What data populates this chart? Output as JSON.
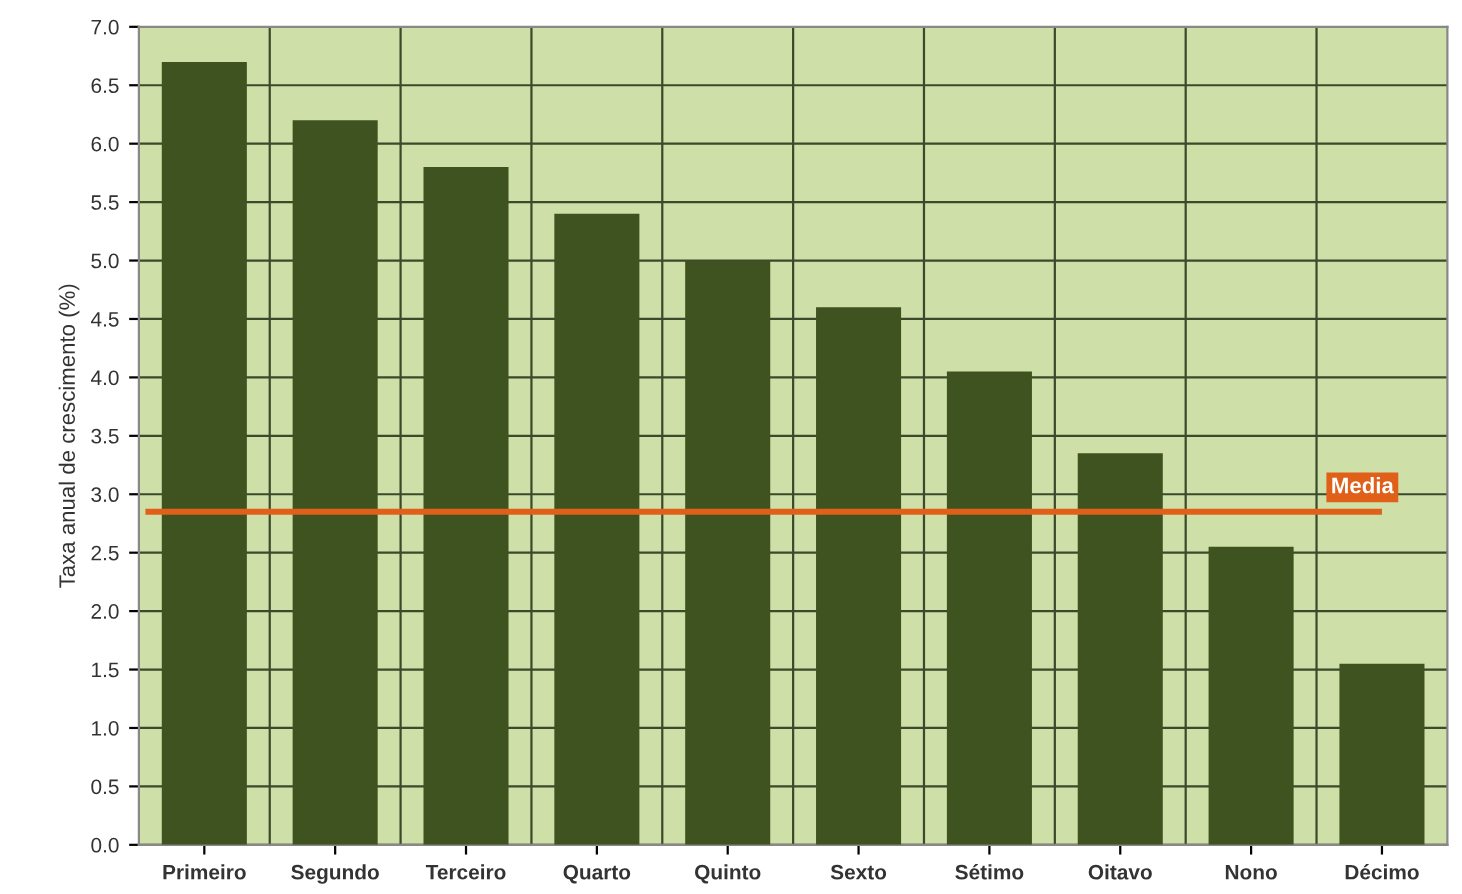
{
  "chart_data": {
    "type": "bar",
    "ylabel": "Taxa anual de crescimento (%)",
    "categories": [
      "Primeiro",
      "Segundo",
      "Terceiro",
      "Quarto",
      "Quinto",
      "Sexto",
      "Sétimo",
      "Oitavo",
      "Nono",
      "Décimo"
    ],
    "values": [
      6.7,
      6.2,
      5.8,
      5.4,
      5.0,
      4.6,
      4.05,
      3.35,
      2.55,
      1.55
    ],
    "color": "#3f5320",
    "ylim": [
      0,
      7
    ],
    "yticks": [
      {
        "value": 0,
        "label": "0.0"
      },
      {
        "value": 0.5,
        "label": "0.5"
      },
      {
        "value": 1,
        "label": "1.0"
      },
      {
        "value": 1.5,
        "label": "1.5"
      },
      {
        "value": 2,
        "label": "2.0"
      },
      {
        "value": 2.5,
        "label": "2.5"
      },
      {
        "value": 3,
        "label": "3.0"
      },
      {
        "value": 3.5,
        "label": "3.5"
      },
      {
        "value": 4,
        "label": "4.0"
      },
      {
        "value": 4.5,
        "label": "4.5"
      },
      {
        "value": 5,
        "label": "5.0"
      },
      {
        "value": 5.5,
        "label": "5.5"
      },
      {
        "value": 6,
        "label": "6.0"
      },
      {
        "value": 6.5,
        "label": "6.5"
      },
      {
        "value": 7,
        "label": "7.0"
      }
    ],
    "ref_lines": [
      {
        "axis": "y",
        "value": 2.85,
        "label": "Media",
        "color": "#e0601a"
      }
    ],
    "grid": true
  }
}
